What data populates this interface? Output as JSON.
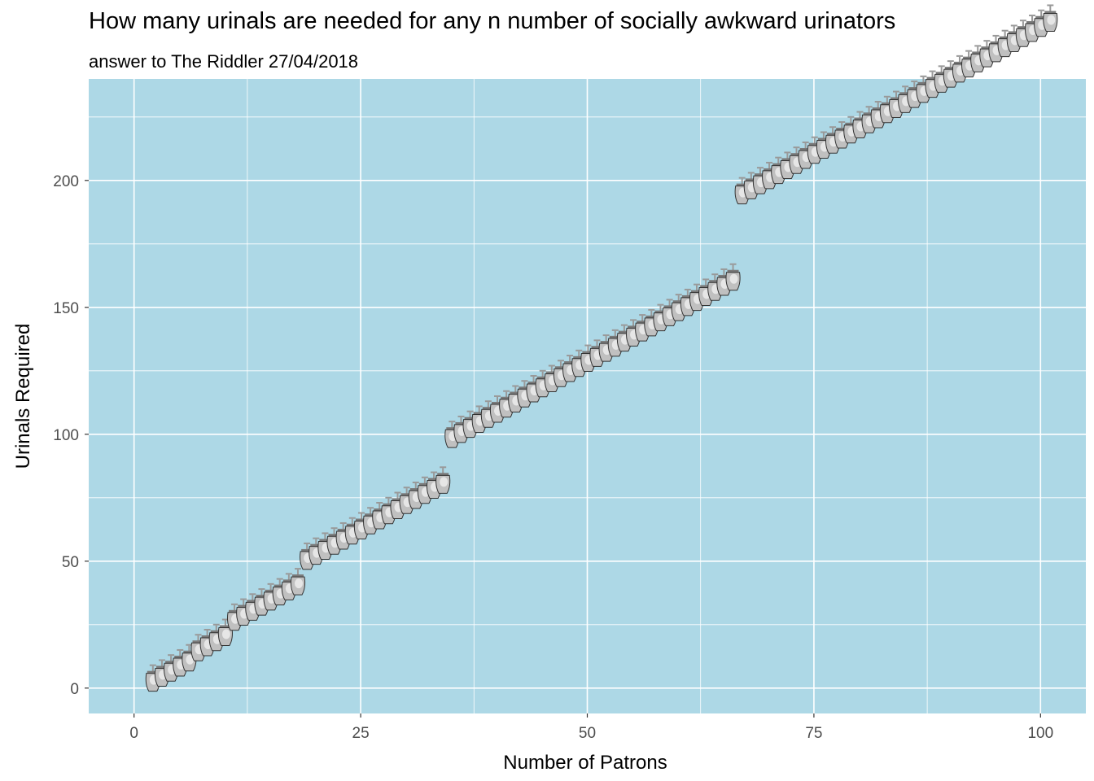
{
  "title": "How many urinals are needed for any n number of socially awkward urinators",
  "subtitle": "answer to The Riddler 27/04/2018",
  "colors": {
    "panel_background": "#add8e6",
    "grid": "#ffffff",
    "urinal_body": "#c0c0c0",
    "urinal_pipe": "#999999"
  },
  "chart_data": {
    "type": "scatter",
    "marker": "urinal-icon",
    "xlabel": "Number of Patrons",
    "ylabel": "Urinals Required",
    "xlim": [
      -5,
      105
    ],
    "ylim": [
      -10,
      240
    ],
    "xticks": [
      0,
      25,
      50,
      75,
      100
    ],
    "yticks": [
      0,
      50,
      100,
      150,
      200
    ],
    "grid": true,
    "legend": "none",
    "x": [
      1,
      2,
      3,
      4,
      5,
      6,
      7,
      8,
      9,
      10,
      11,
      12,
      13,
      14,
      15,
      16,
      17,
      18,
      19,
      20,
      21,
      22,
      23,
      24,
      25,
      26,
      27,
      28,
      29,
      30,
      31,
      32,
      33,
      34,
      35,
      36,
      37,
      38,
      39,
      40,
      41,
      42,
      43,
      44,
      45,
      46,
      47,
      48,
      49,
      50,
      51,
      52,
      53,
      54,
      55,
      56,
      57,
      58,
      59,
      60,
      61,
      62,
      63,
      64,
      65,
      66,
      67,
      68,
      69,
      70,
      71,
      72,
      73,
      74,
      75,
      76,
      77,
      78,
      79,
      80,
      81,
      82,
      83,
      84,
      85,
      86,
      87,
      88,
      89,
      90,
      91,
      92,
      93,
      94,
      95,
      96,
      97,
      98,
      99,
      100
    ],
    "y": [
      1,
      3,
      5,
      7,
      9,
      13,
      15,
      17,
      19,
      25,
      27,
      29,
      31,
      33,
      35,
      37,
      39,
      49,
      51,
      53,
      55,
      57,
      59,
      61,
      63,
      65,
      67,
      69,
      71,
      73,
      75,
      77,
      79,
      97,
      99,
      101,
      103,
      105,
      107,
      109,
      111,
      113,
      115,
      117,
      119,
      121,
      123,
      125,
      127,
      129,
      131,
      133,
      135,
      137,
      139,
      141,
      143,
      145,
      147,
      149,
      151,
      153,
      155,
      157,
      159,
      193,
      195,
      197,
      199,
      201,
      203,
      205,
      207,
      209,
      211,
      213,
      215,
      217,
      219,
      221,
      223,
      225,
      227,
      229,
      231,
      233,
      235,
      237,
      239,
      241,
      243,
      245,
      247,
      249,
      251,
      253,
      255,
      257,
      259,
      261
    ]
  }
}
